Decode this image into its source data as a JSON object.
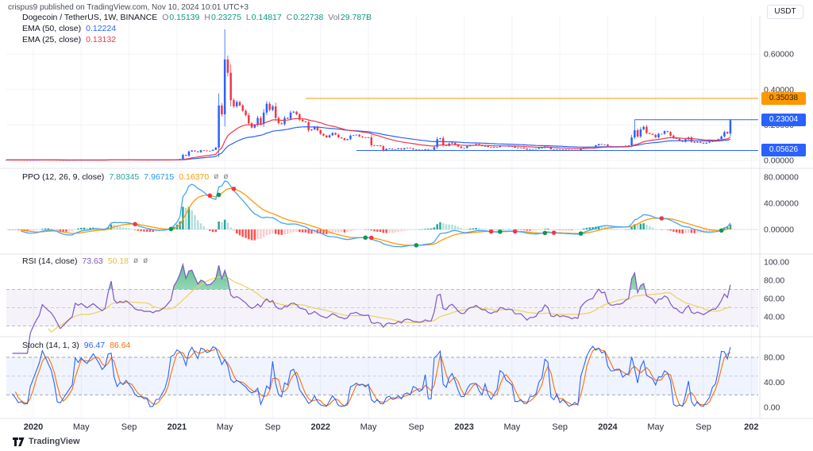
{
  "header": {
    "published_line": "crispus9 published on TradingView.com, Nov 10, 2024 10:01 UTC+3"
  },
  "footer": {
    "brand": "TradingView"
  },
  "legend": {
    "price": {
      "symbol": "Dogecoin / TetherUS, 1W, BINANCE",
      "o_label": "O",
      "o": "0.15139",
      "h_label": "H",
      "h": "0.23275",
      "l_label": "L",
      "l": "0.14817",
      "c_label": "C",
      "c": "0.22738",
      "vol_label": "Vol",
      "vol": "29.787B",
      "ema50_label": "EMA (50, close)",
      "ema50": "0.12224",
      "ema25_label": "EMA (25, close)",
      "ema25": "0.13132"
    },
    "ppo": {
      "title": "PPO (12, 26, 9, close)",
      "histogram": "7.80345",
      "ppo": "7.96715",
      "signal": "0.16370",
      "hidden_icon": "ø"
    },
    "rsi": {
      "title": "RSI (14, close)",
      "value": "73.63",
      "ma": "50.18",
      "hidden_icon": "ø"
    },
    "stoch": {
      "title": "Stoch (14, 1, 3)",
      "k": "96.47",
      "d": "86.64"
    }
  },
  "chart_data": [
    {
      "type": "candlestick",
      "pane": "price",
      "symbol": "Dogecoin / TetherUS",
      "interval": "1W",
      "exchange": "BINANCE",
      "last_bar": {
        "open": 0.15139,
        "high": 0.23275,
        "low": 0.14817,
        "close": 0.22738,
        "volume": "29.787B"
      },
      "y_axis": {
        "currency": "USDT",
        "range": [
          0.0,
          0.78
        ],
        "ticks": [
          {
            "label": "0.60000",
            "value": 0.6
          },
          {
            "label": "0.40000",
            "value": 0.4
          },
          {
            "label": "0.20000",
            "value": 0.2
          },
          {
            "label": "0.00000",
            "value": 0.0
          }
        ]
      },
      "x_ticks": [
        {
          "label": "2020",
          "index": 9,
          "bold": true
        },
        {
          "label": "May",
          "index": 25,
          "bold": false
        },
        {
          "label": "Sep",
          "index": 41,
          "bold": false
        },
        {
          "label": "2021",
          "index": 57,
          "bold": true
        },
        {
          "label": "May",
          "index": 73,
          "bold": false
        },
        {
          "label": "Sep",
          "index": 89,
          "bold": false
        },
        {
          "label": "2022",
          "index": 105,
          "bold": true
        },
        {
          "label": "May",
          "index": 121,
          "bold": false
        },
        {
          "label": "Sep",
          "index": 137,
          "bold": false
        },
        {
          "label": "2023",
          "index": 153,
          "bold": true
        },
        {
          "label": "May",
          "index": 169,
          "bold": false
        },
        {
          "label": "Sep",
          "index": 185,
          "bold": false
        },
        {
          "label": "2024",
          "index": 201,
          "bold": true
        },
        {
          "label": "May",
          "index": 217,
          "bold": false
        },
        {
          "label": "Sep",
          "index": 233,
          "bold": false
        },
        {
          "label": "202",
          "index": 249,
          "bold": true
        }
      ],
      "weekly_closes": [
        0.0027,
        0.0027,
        0.0026,
        0.0025,
        0.0024,
        0.0022,
        0.0021,
        0.002,
        0.0022,
        0.0023,
        0.0024,
        0.0025,
        0.0028,
        0.0027,
        0.0026,
        0.0025,
        0.0023,
        0.002,
        0.0016,
        0.0017,
        0.0018,
        0.0019,
        0.002,
        0.0026,
        0.0025,
        0.0026,
        0.0025,
        0.0024,
        0.0025,
        0.0026,
        0.0025,
        0.0024,
        0.0023,
        0.0024,
        0.0033,
        0.0048,
        0.0035,
        0.0032,
        0.0034,
        0.0033,
        0.0035,
        0.0033,
        0.0031,
        0.0028,
        0.0027,
        0.0027,
        0.0026,
        0.0026,
        0.0026,
        0.0025,
        0.0026,
        0.0026,
        0.0027,
        0.0028,
        0.003,
        0.0032,
        0.0046,
        0.0055,
        0.0078,
        0.031,
        0.026,
        0.05,
        0.056,
        0.051,
        0.046,
        0.057,
        0.056,
        0.053,
        0.054,
        0.06,
        0.072,
        0.31,
        0.26,
        0.57,
        0.495,
        0.34,
        0.305,
        0.33,
        0.31,
        0.28,
        0.255,
        0.21,
        0.185,
        0.2,
        0.24,
        0.205,
        0.27,
        0.32,
        0.285,
        0.305,
        0.24,
        0.21,
        0.205,
        0.24,
        0.235,
        0.27,
        0.275,
        0.26,
        0.23,
        0.22,
        0.215,
        0.17,
        0.175,
        0.19,
        0.17,
        0.15,
        0.14,
        0.13,
        0.142,
        0.155,
        0.145,
        0.13,
        0.125,
        0.115,
        0.12,
        0.14,
        0.142,
        0.145,
        0.135,
        0.13,
        0.128,
        0.13,
        0.086,
        0.082,
        0.085,
        0.08,
        0.055,
        0.065,
        0.067,
        0.062,
        0.063,
        0.068,
        0.062,
        0.069,
        0.071,
        0.068,
        0.062,
        0.061,
        0.059,
        0.06,
        0.063,
        0.06,
        0.06,
        0.075,
        0.12,
        0.125,
        0.086,
        0.082,
        0.095,
        0.1,
        0.09,
        0.078,
        0.07,
        0.07,
        0.08,
        0.086,
        0.087,
        0.092,
        0.086,
        0.081,
        0.081,
        0.075,
        0.072,
        0.075,
        0.075,
        0.083,
        0.082,
        0.079,
        0.08,
        0.079,
        0.072,
        0.072,
        0.072,
        0.067,
        0.061,
        0.064,
        0.064,
        0.065,
        0.07,
        0.071,
        0.078,
        0.075,
        0.063,
        0.062,
        0.064,
        0.061,
        0.062,
        0.061,
        0.06,
        0.058,
        0.059,
        0.058,
        0.068,
        0.072,
        0.075,
        0.077,
        0.078,
        0.085,
        0.092,
        0.089,
        0.09,
        0.081,
        0.078,
        0.078,
        0.079,
        0.079,
        0.08,
        0.083,
        0.085,
        0.13,
        0.17,
        0.135,
        0.175,
        0.19,
        0.155,
        0.15,
        0.145,
        0.13,
        0.15,
        0.15,
        0.165,
        0.16,
        0.14,
        0.125,
        0.122,
        0.11,
        0.105,
        0.12,
        0.13,
        0.105,
        0.1,
        0.105,
        0.1,
        0.095,
        0.1,
        0.105,
        0.11,
        0.11,
        0.12,
        0.135,
        0.16,
        0.1514,
        0.22738
      ],
      "high_overrides": {
        "73": 0.74,
        "210": 0.23,
        "242": 0.23275
      },
      "overlays": [
        {
          "name": "EMA 50",
          "period": 50,
          "color": "#2962ff",
          "last_value": 0.12224
        },
        {
          "name": "EMA 25",
          "period": 25,
          "color": "#f23645",
          "last_value": 0.13132
        }
      ],
      "levels": [
        {
          "price": 0.35038,
          "color": "#ff9800",
          "start_index": 100,
          "axis_label": "0.35038"
        },
        {
          "price": 0.23004,
          "color": "#2962ff",
          "start_index": 210,
          "axis_label": "0.23004"
        },
        {
          "price": 0.05626,
          "color": "#2962ff",
          "start_index": 117,
          "axis_label": "0.05626"
        }
      ],
      "candle_colors": {
        "up": "#2962ff",
        "down": "#f23645"
      }
    },
    {
      "type": "ppo",
      "pane": "ppo",
      "params": [
        12,
        26,
        9
      ],
      "source": "close",
      "last_values": {
        "histogram": 7.80345,
        "ppo": 7.96715,
        "signal": 0.1637
      },
      "colors": {
        "ppo_line": "#42a5f5",
        "signal_line": "#ff9800",
        "hist_up_strong": "#26a69a",
        "hist_up_weak": "#b2dfdb",
        "hist_dn_strong": "#ff5252",
        "hist_dn_weak": "#fccbcd",
        "cross_up_dot": "#0c9650",
        "cross_dn_dot": "#f23645"
      },
      "y_ticks": [
        {
          "label": "80.00000",
          "value": 80
        },
        {
          "label": "40.00000",
          "value": 40
        },
        {
          "label": "0.00000",
          "value": 0
        }
      ],
      "range": [
        -38,
        92
      ]
    },
    {
      "type": "rsi",
      "pane": "rsi",
      "period": 14,
      "source": "close",
      "last_values": {
        "rsi": 73.63,
        "ma": 50.18
      },
      "colors": {
        "rsi_line": "#7e57c2",
        "ma_line": "#ecd25e",
        "band_fill": "rgba(126,87,194,0.08)",
        "overbought_fill": "#22ab67"
      },
      "bands": [
        70,
        50,
        30
      ],
      "y_ticks": [
        {
          "label": "100.00",
          "value": 100
        },
        {
          "label": "80.00",
          "value": 80
        },
        {
          "label": "60.00",
          "value": 60
        },
        {
          "label": "40.00",
          "value": 40
        }
      ],
      "range": [
        0,
        100
      ]
    },
    {
      "type": "stoch",
      "pane": "stoch",
      "params": [
        14,
        1,
        3
      ],
      "last_values": {
        "k": 96.47,
        "d": 86.64
      },
      "colors": {
        "k_line": "#2962ff",
        "d_line": "#ff6d00",
        "band_fill": "rgba(41,98,255,0.07)"
      },
      "bands": [
        80,
        50,
        20
      ],
      "y_ticks": [
        {
          "label": "80.00",
          "value": 80
        },
        {
          "label": "40.00",
          "value": 40
        },
        {
          "label": "0.00",
          "value": 0
        }
      ],
      "range": [
        0,
        100
      ]
    }
  ]
}
